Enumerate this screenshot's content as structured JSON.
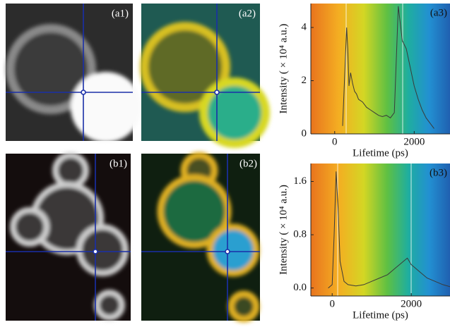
{
  "panels": [
    "(a1)",
    "(a2)",
    "(b1)",
    "(b2)"
  ],
  "chart_data": [
    {
      "type": "line",
      "title": "(a3)",
      "y_label": "Intensity ( × 10⁴ a.u.)",
      "x_label": "Lifetime (ps)",
      "x": [
        200,
        260,
        300,
        330,
        360,
        400,
        450,
        500,
        550,
        600,
        700,
        800,
        900,
        1000,
        1100,
        1200,
        1300,
        1400,
        1500,
        1600,
        1700,
        1800,
        1900,
        2000,
        2100,
        2200,
        2300,
        2400,
        2500
      ],
      "values": [
        0.3,
        2.5,
        4.0,
        3.2,
        1.8,
        2.3,
        1.9,
        1.6,
        1.5,
        1.3,
        1.2,
        1.0,
        0.9,
        0.8,
        0.7,
        0.65,
        0.7,
        0.6,
        0.8,
        4.8,
        3.5,
        3.2,
        2.5,
        1.8,
        1.3,
        0.9,
        0.6,
        0.4,
        0.2
      ],
      "color": "#3a3a3a",
      "xlim": [
        -600,
        2900
      ],
      "ylim": [
        0,
        4.9
      ],
      "xticks": [
        0,
        2000
      ],
      "yticks": [
        0,
        2,
        4
      ]
    },
    {
      "type": "line",
      "title": "(b3)",
      "y_label": "Intensity ( × 10⁴ a.u.)",
      "x_label": "Lifetime (ps)",
      "x": [
        -100,
        0,
        50,
        100,
        150,
        200,
        300,
        400,
        600,
        800,
        1000,
        1200,
        1400,
        1600,
        1700,
        1800,
        1900,
        2000,
        2100,
        2200,
        2400,
        2600,
        2800,
        2980
      ],
      "values": [
        0.0,
        0.05,
        0.8,
        1.75,
        1.2,
        0.4,
        0.1,
        0.05,
        0.03,
        0.05,
        0.1,
        0.15,
        0.2,
        0.3,
        0.35,
        0.4,
        0.45,
        0.35,
        0.3,
        0.25,
        0.15,
        0.1,
        0.05,
        0.02
      ],
      "color": "#3a3a3a",
      "xlim": [
        -540,
        2980
      ],
      "ylim": [
        -0.12,
        1.87
      ],
      "xticks": [
        0,
        2000
      ],
      "yticks": [
        {
          "value": 0,
          "label": "0.0"
        },
        0.8,
        1.6
      ]
    }
  ]
}
